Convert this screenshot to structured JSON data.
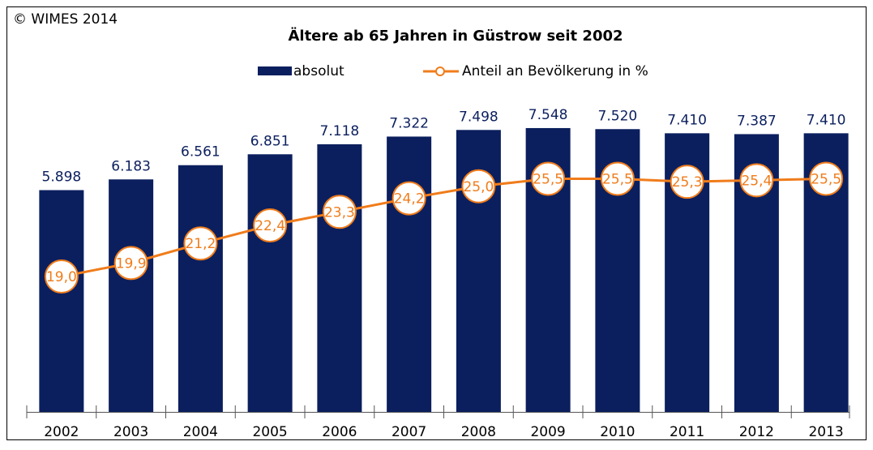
{
  "chart_data": {
    "type": "bar",
    "title": "Ältere ab 65 Jahren in Güstrow seit 2002",
    "source": "© WIMES 2014",
    "categories": [
      "2002",
      "2003",
      "2004",
      "2005",
      "2006",
      "2007",
      "2008",
      "2009",
      "2010",
      "2011",
      "2012",
      "2013"
    ],
    "series": [
      {
        "name": "absolut",
        "type": "bar",
        "color": "#0b1f5e",
        "values": [
          5898,
          6183,
          6561,
          6851,
          7118,
          7322,
          7498,
          7548,
          7520,
          7410,
          7387,
          7410
        ],
        "value_labels": [
          "5.898",
          "6.183",
          "6.561",
          "6.851",
          "7.118",
          "7.322",
          "7.498",
          "7.548",
          "7.520",
          "7.410",
          "7.387",
          "7.410"
        ]
      },
      {
        "name": "Anteil an Bevölkerung in %",
        "type": "line",
        "axis": "y2",
        "color": "#f07c1b",
        "values": [
          19.0,
          19.9,
          21.2,
          22.4,
          23.3,
          24.2,
          25.0,
          25.5,
          25.5,
          25.3,
          25.4,
          25.5
        ],
        "value_labels": [
          "19,0",
          "19,9",
          "21,2",
          "22,4",
          "23,3",
          "24,2",
          "25,0",
          "25,5",
          "25,5",
          "25,3",
          "25,4",
          "25,5"
        ]
      }
    ],
    "ylim": [
      0,
      8000
    ],
    "y2lim": [
      10,
      30
    ],
    "legend": "top"
  }
}
